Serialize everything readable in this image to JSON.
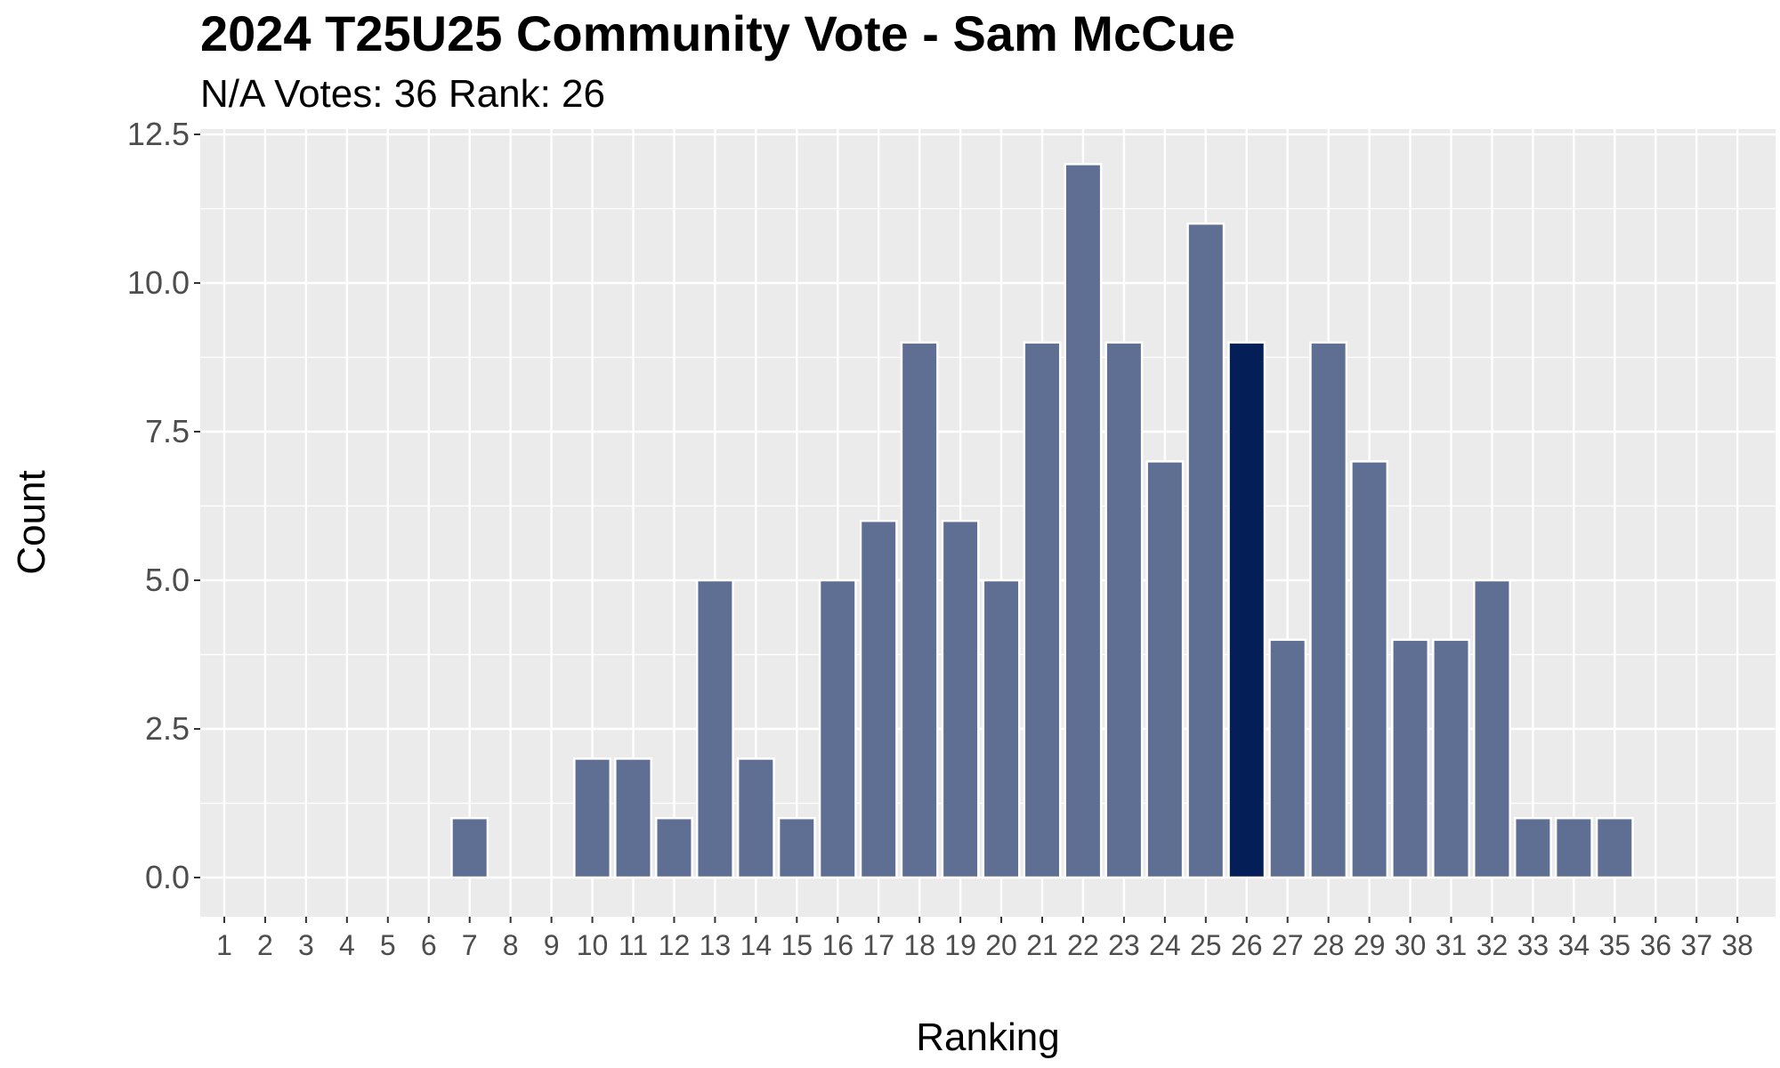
{
  "chart_data": {
    "type": "bar",
    "title": "2024 T25U25 Community Vote - Sam McCue",
    "subtitle": "N/A Votes: 36  Rank: 26",
    "xlabel": "Ranking",
    "ylabel": "Count",
    "ylim": [
      0,
      12.5
    ],
    "yticks": [
      "0.0",
      "2.5",
      "5.0",
      "7.5",
      "10.0",
      "12.5"
    ],
    "categories": [
      "1",
      "2",
      "3",
      "4",
      "5",
      "6",
      "7",
      "8",
      "9",
      "10",
      "11",
      "12",
      "13",
      "14",
      "15",
      "16",
      "17",
      "18",
      "19",
      "20",
      "21",
      "22",
      "23",
      "24",
      "25",
      "26",
      "27",
      "28",
      "29",
      "30",
      "31",
      "32",
      "33",
      "34",
      "35",
      "36",
      "37",
      "38"
    ],
    "values": [
      0,
      0,
      0,
      0,
      0,
      0,
      1,
      0,
      0,
      2,
      2,
      1,
      5,
      2,
      1,
      5,
      6,
      9,
      6,
      5,
      9,
      12,
      9,
      7,
      11,
      9,
      4,
      9,
      7,
      4,
      4,
      5,
      1,
      1,
      1,
      0,
      0,
      0
    ],
    "highlight_category": "26",
    "grid": true,
    "colors": {
      "bar": "#5f6f93",
      "highlight": "#041e57",
      "panel": "#ebebeb",
      "grid": "#ffffff"
    }
  }
}
